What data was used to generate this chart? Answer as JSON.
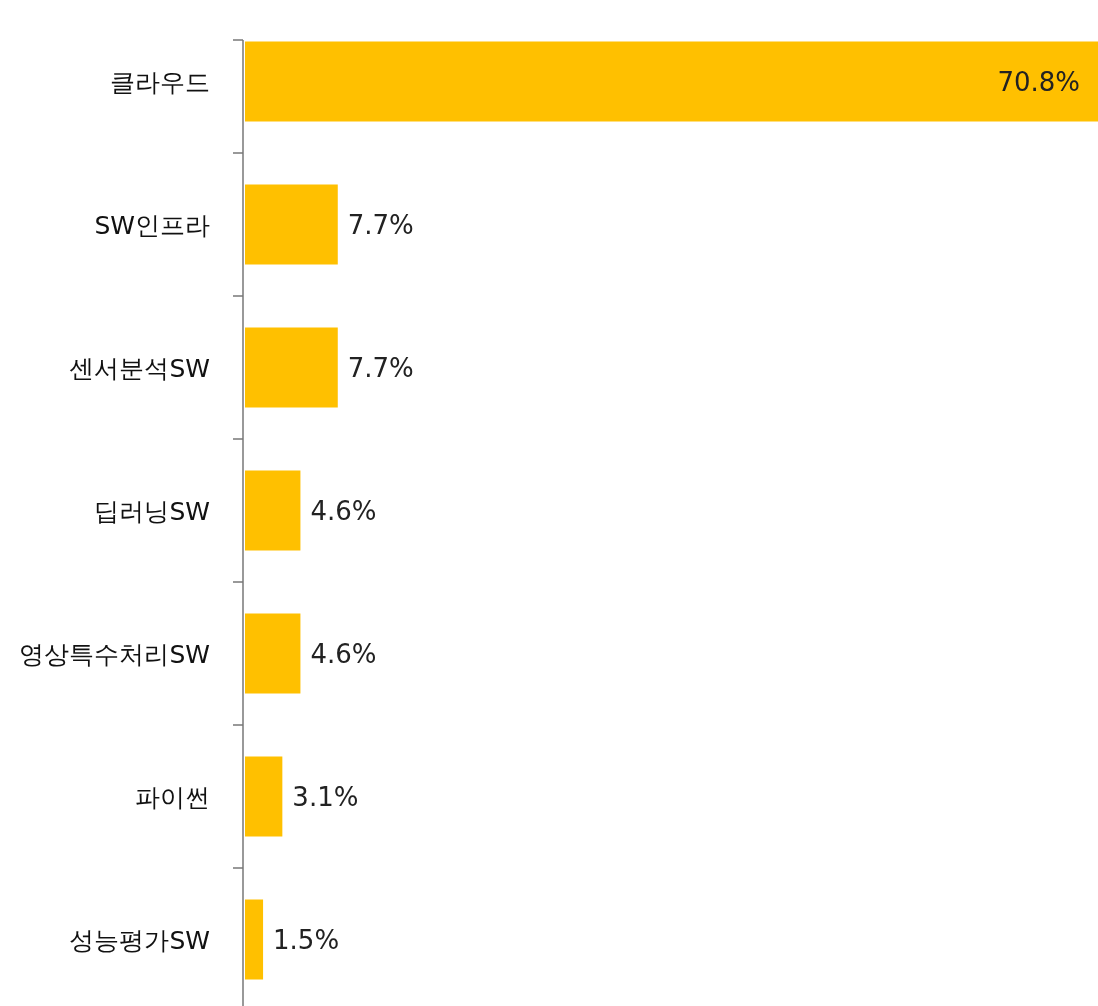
{
  "chart_data": {
    "type": "bar",
    "orientation": "horizontal",
    "categories": [
      "클라우드",
      "SW인프라",
      "센서분석SW",
      "딥러닝SW",
      "영상특수처리SW",
      "파이썬",
      "성능평가SW"
    ],
    "values": [
      70.8,
      7.7,
      7.7,
      4.6,
      4.6,
      3.1,
      1.5
    ],
    "value_labels": [
      "70.8%",
      "7.7%",
      "7.7%",
      "4.6%",
      "4.6%",
      "3.1%",
      "1.5%"
    ],
    "color": "#ffc000"
  }
}
